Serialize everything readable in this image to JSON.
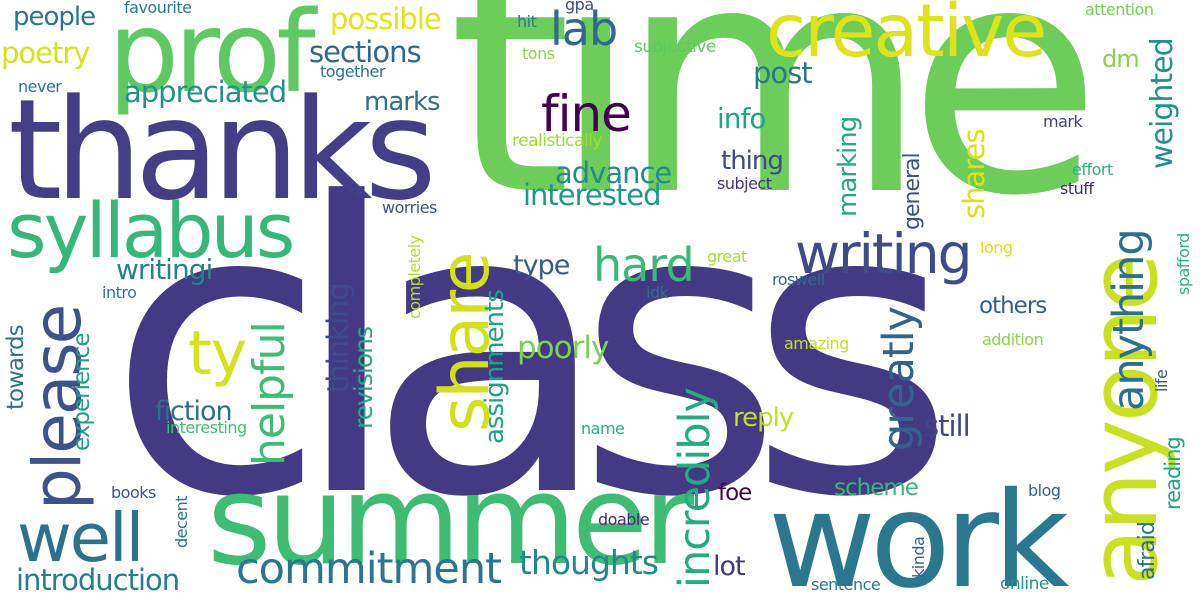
{
  "words": [
    {
      "text": "class",
      "color": "#443983",
      "orientation": "horizontal"
    },
    {
      "text": "time",
      "color": "#6ccd5a",
      "orientation": "horizontal"
    },
    {
      "text": "thanks",
      "color": "#433e85",
      "orientation": "horizontal"
    },
    {
      "text": "summer",
      "color": "#3fbc73",
      "orientation": "horizontal"
    },
    {
      "text": "work",
      "color": "#2a788e",
      "orientation": "horizontal"
    },
    {
      "text": "prof",
      "color": "#5ec962",
      "orientation": "horizontal"
    },
    {
      "text": "anyone",
      "color": "#c8e020",
      "orientation": "vertical"
    },
    {
      "text": "syllabus",
      "color": "#35b779",
      "orientation": "horizontal"
    },
    {
      "text": "creative",
      "color": "#dde318",
      "orientation": "horizontal"
    },
    {
      "text": "share",
      "color": "#d0e11c",
      "orientation": "vertical"
    },
    {
      "text": "please",
      "color": "#3b528b",
      "orientation": "vertical"
    },
    {
      "text": "well",
      "color": "#2c728e",
      "orientation": "horizontal"
    },
    {
      "text": "writing",
      "color": "#3e4a89",
      "orientation": "horizontal"
    },
    {
      "text": "commitment",
      "color": "#2a768e",
      "orientation": "horizontal"
    },
    {
      "text": "incredibly",
      "color": "#25ab82",
      "orientation": "vertical"
    },
    {
      "text": "helpful",
      "color": "#3dbc74",
      "orientation": "vertical"
    },
    {
      "text": "greatly",
      "color": "#33638d",
      "orientation": "vertical"
    },
    {
      "text": "anything",
      "color": "#2d708e",
      "orientation": "vertical"
    },
    {
      "text": "fine",
      "color": "#440154",
      "orientation": "horizontal"
    },
    {
      "text": "lab",
      "color": "#31688e",
      "orientation": "horizontal"
    },
    {
      "text": "hard",
      "color": "#3aba76",
      "orientation": "horizontal"
    },
    {
      "text": "ty",
      "color": "#d2e21b",
      "orientation": "horizontal"
    },
    {
      "text": "weighted",
      "color": "#20928c",
      "orientation": "vertical"
    },
    {
      "text": "introduction",
      "color": "#277f8e",
      "orientation": "horizontal"
    },
    {
      "text": "thoughts",
      "color": "#23888e",
      "orientation": "horizontal"
    },
    {
      "text": "people",
      "color": "#2a768e",
      "orientation": "horizontal"
    },
    {
      "text": "poetry",
      "color": "#d5e21a",
      "orientation": "horizontal"
    },
    {
      "text": "possible",
      "color": "#e2e418",
      "orientation": "horizontal"
    },
    {
      "text": "sections",
      "color": "#31668e",
      "orientation": "horizontal"
    },
    {
      "text": "appreciated",
      "color": "#21918c",
      "orientation": "horizontal"
    },
    {
      "text": "marks",
      "color": "#2e6f8e",
      "orientation": "horizontal"
    },
    {
      "text": "post",
      "color": "#2a788e",
      "orientation": "horizontal"
    },
    {
      "text": "info",
      "color": "#20a386",
      "orientation": "horizontal"
    },
    {
      "text": "advance",
      "color": "#228d8d",
      "orientation": "horizontal"
    },
    {
      "text": "interested",
      "color": "#1f968b",
      "orientation": "horizontal"
    },
    {
      "text": "thing",
      "color": "#3e4989",
      "orientation": "horizontal"
    },
    {
      "text": "marking",
      "color": "#22a884",
      "orientation": "vertical"
    },
    {
      "text": "general",
      "color": "#3b528b",
      "orientation": "vertical"
    },
    {
      "text": "shares",
      "color": "#d8e219",
      "orientation": "vertical"
    },
    {
      "text": "writingi",
      "color": "#26828e",
      "orientation": "horizontal"
    },
    {
      "text": "type",
      "color": "#38598c",
      "orientation": "horizontal"
    },
    {
      "text": "thinking",
      "color": "#3e4c8a",
      "orientation": "vertical"
    },
    {
      "text": "revisions",
      "color": "#25ab82",
      "orientation": "vertical"
    },
    {
      "text": "assignments",
      "color": "#1fa187",
      "orientation": "vertical"
    },
    {
      "text": "poorly",
      "color": "#7ad151",
      "orientation": "horizontal"
    },
    {
      "text": "fiction",
      "color": "#2e6e8e",
      "orientation": "horizontal"
    },
    {
      "text": "still",
      "color": "#404688",
      "orientation": "horizontal"
    },
    {
      "text": "reply",
      "color": "#c2df23",
      "orientation": "horizontal"
    },
    {
      "text": "others",
      "color": "#355e8d",
      "orientation": "horizontal"
    },
    {
      "text": "towards",
      "color": "#2c728e",
      "orientation": "vertical"
    },
    {
      "text": "experience",
      "color": "#1fa088",
      "orientation": "vertical"
    },
    {
      "text": "scheme",
      "color": "#35b779",
      "orientation": "horizontal"
    },
    {
      "text": "foe",
      "color": "#440154",
      "orientation": "horizontal"
    },
    {
      "text": "lot",
      "color": "#453781",
      "orientation": "horizontal"
    },
    {
      "text": "reading",
      "color": "#20a486",
      "orientation": "vertical"
    },
    {
      "text": "afraid",
      "color": "#2d708e",
      "orientation": "vertical"
    },
    {
      "text": "dm",
      "color": "#86d549",
      "orientation": "horizontal"
    },
    {
      "text": "favourite",
      "color": "#2a788e",
      "orientation": "horizontal"
    },
    {
      "text": "together",
      "color": "#2c728e",
      "orientation": "horizontal"
    },
    {
      "text": "never",
      "color": "#2a788e",
      "orientation": "horizontal"
    },
    {
      "text": "gpa",
      "color": "#3e4989",
      "orientation": "horizontal"
    },
    {
      "text": "hit",
      "color": "#287c8e",
      "orientation": "horizontal"
    },
    {
      "text": "tons",
      "color": "#8bd646",
      "orientation": "horizontal"
    },
    {
      "text": "subjective",
      "color": "#5ec962",
      "orientation": "horizontal"
    },
    {
      "text": "attention",
      "color": "#75d054",
      "orientation": "horizontal"
    },
    {
      "text": "realistically",
      "color": "#a2da37",
      "orientation": "horizontal"
    },
    {
      "text": "mark",
      "color": "#414487",
      "orientation": "horizontal"
    },
    {
      "text": "effort",
      "color": "#2db27d",
      "orientation": "horizontal"
    },
    {
      "text": "subject",
      "color": "#46337e",
      "orientation": "horizontal"
    },
    {
      "text": "stuff",
      "color": "#482878",
      "orientation": "horizontal"
    },
    {
      "text": "worries",
      "color": "#3b528b",
      "orientation": "horizontal"
    },
    {
      "text": "long",
      "color": "#d8e219",
      "orientation": "horizontal"
    },
    {
      "text": "great",
      "color": "#a8db34",
      "orientation": "horizontal"
    },
    {
      "text": "roswell",
      "color": "#30698e",
      "orientation": "horizontal"
    },
    {
      "text": "idk",
      "color": "#2e6e8e",
      "orientation": "horizontal"
    },
    {
      "text": "intro",
      "color": "#287d8e",
      "orientation": "horizontal"
    },
    {
      "text": "completely",
      "color": "#b5de2b",
      "orientation": "vertical"
    },
    {
      "text": "spafford",
      "color": "#2db27d",
      "orientation": "vertical"
    },
    {
      "text": "amazing",
      "color": "#c8e020",
      "orientation": "horizontal"
    },
    {
      "text": "addition",
      "color": "#8bd646",
      "orientation": "horizontal"
    },
    {
      "text": "life",
      "color": "#3b528b",
      "orientation": "vertical"
    },
    {
      "text": "interesting",
      "color": "#42be71",
      "orientation": "horizontal"
    },
    {
      "text": "name",
      "color": "#29af7f",
      "orientation": "horizontal"
    },
    {
      "text": "books",
      "color": "#39558c",
      "orientation": "horizontal"
    },
    {
      "text": "decent",
      "color": "#2c728e",
      "orientation": "vertical"
    },
    {
      "text": "doable",
      "color": "#482878",
      "orientation": "horizontal"
    },
    {
      "text": "blog",
      "color": "#355f8d",
      "orientation": "horizontal"
    },
    {
      "text": "kinda",
      "color": "#32648e",
      "orientation": "vertical"
    },
    {
      "text": "sentence",
      "color": "#2a788e",
      "orientation": "horizontal"
    },
    {
      "text": "online",
      "color": "#21918c",
      "orientation": "horizontal"
    }
  ]
}
